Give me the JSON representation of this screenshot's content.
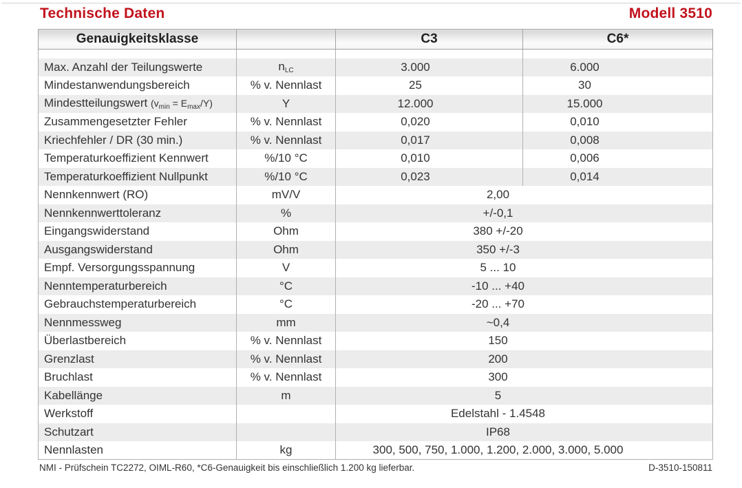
{
  "page": {
    "title_left": "Technische Daten",
    "title_right": "Modell 3510",
    "accent_color": "#c1121c",
    "stripe_color": "#ececec",
    "footer_left": "NMI - Prüfschein TC2272, OIML-R60, *C6-Genauigkeit bis einschließlich 1.200 kg lieferbar.",
    "footer_right": "D-3510-150811"
  },
  "table": {
    "header": {
      "col1": "Genauigkeitsklasse",
      "col2": "",
      "col3": "C3",
      "col4": "C6*"
    },
    "rows": [
      {
        "label": [
          [
            "Max. Anzahl der Teilungswerte",
            ""
          ]
        ],
        "unit": [
          [
            "n",
            ""
          ],
          [
            "LC",
            "sub"
          ]
        ],
        "c3": "3.000",
        "c6": "6.000"
      },
      {
        "label": [
          [
            "Mindestanwendungsbereich",
            ""
          ]
        ],
        "unit": [
          [
            "% v. Nennlast",
            ""
          ]
        ],
        "c3": "25",
        "c6": "30"
      },
      {
        "label": [
          [
            "Mindestteilungswert ",
            ""
          ],
          [
            "(v",
            "small"
          ],
          [
            "min",
            "sub"
          ],
          [
            " = E",
            "small"
          ],
          [
            "max",
            "sub"
          ],
          [
            "/Y)",
            "small"
          ]
        ],
        "unit": [
          [
            "Y",
            ""
          ]
        ],
        "c3": "12.000",
        "c6": "15.000"
      },
      {
        "label": [
          [
            "Zusammengesetzter Fehler",
            ""
          ]
        ],
        "unit": [
          [
            "% v. Nennlast",
            ""
          ]
        ],
        "c3": "0,020",
        "c6": "0,010"
      },
      {
        "label": [
          [
            "Kriechfehler / DR (30 min.)",
            ""
          ]
        ],
        "unit": [
          [
            "% v. Nennlast",
            ""
          ]
        ],
        "c3": "0,017",
        "c6": "0,008"
      },
      {
        "label": [
          [
            "Temperaturkoeffizient Kennwert",
            ""
          ]
        ],
        "unit": [
          [
            "%/10 °C",
            ""
          ]
        ],
        "c3": "0,010",
        "c6": "0,006"
      },
      {
        "label": [
          [
            "Temperaturkoeffizient Nullpunkt",
            ""
          ]
        ],
        "unit": [
          [
            "%/10 °C",
            ""
          ]
        ],
        "c3": "0,023",
        "c6": "0,014"
      },
      {
        "label": [
          [
            "Nennkennwert (RO)",
            ""
          ]
        ],
        "unit": [
          [
            "mV/V",
            ""
          ]
        ],
        "value": "2,00"
      },
      {
        "label": [
          [
            "Nennkennwerttoleranz",
            ""
          ]
        ],
        "unit": [
          [
            "%",
            ""
          ]
        ],
        "value": "+/-0,1"
      },
      {
        "label": [
          [
            "Eingangswiderstand",
            ""
          ]
        ],
        "unit": [
          [
            "Ohm",
            ""
          ]
        ],
        "value": "380 +/-20"
      },
      {
        "label": [
          [
            "Ausgangswiderstand",
            ""
          ]
        ],
        "unit": [
          [
            "Ohm",
            ""
          ]
        ],
        "value": "350 +/-3"
      },
      {
        "label": [
          [
            "Empf. Versorgungsspannung",
            ""
          ]
        ],
        "unit": [
          [
            "V",
            ""
          ]
        ],
        "value": "5 ... 10"
      },
      {
        "label": [
          [
            "Nenntemperaturbereich",
            ""
          ]
        ],
        "unit": [
          [
            "°C",
            ""
          ]
        ],
        "value": "-10 ... +40"
      },
      {
        "label": [
          [
            "Gebrauchstemperaturbereich",
            ""
          ]
        ],
        "unit": [
          [
            "°C",
            ""
          ]
        ],
        "value": "-20 ... +70"
      },
      {
        "label": [
          [
            "Nennmessweg",
            ""
          ]
        ],
        "unit": [
          [
            "mm",
            ""
          ]
        ],
        "value": "~0,4"
      },
      {
        "label": [
          [
            "Überlastbereich",
            ""
          ]
        ],
        "unit": [
          [
            "% v. Nennlast",
            ""
          ]
        ],
        "value": "150"
      },
      {
        "label": [
          [
            "Grenzlast",
            ""
          ]
        ],
        "unit": [
          [
            "% v. Nennlast",
            ""
          ]
        ],
        "value": "200"
      },
      {
        "label": [
          [
            "Bruchlast",
            ""
          ]
        ],
        "unit": [
          [
            "% v. Nennlast",
            ""
          ]
        ],
        "value": "300"
      },
      {
        "label": [
          [
            "Kabellänge",
            ""
          ]
        ],
        "unit": [
          [
            "m",
            ""
          ]
        ],
        "value": "5"
      },
      {
        "label": [
          [
            "Werkstoff",
            ""
          ]
        ],
        "unit": [],
        "value": "Edelstahl - 1.4548"
      },
      {
        "label": [
          [
            "Schutzart",
            ""
          ]
        ],
        "unit": [],
        "value": "IP68"
      },
      {
        "label": [
          [
            "Nennlasten",
            ""
          ]
        ],
        "unit": [
          [
            "kg",
            ""
          ]
        ],
        "value": "300, 500, 750, 1.000, 1.200, 2.000, 3.000, 5.000"
      }
    ]
  }
}
